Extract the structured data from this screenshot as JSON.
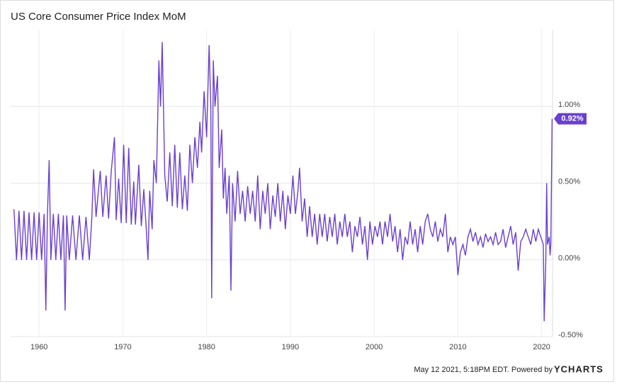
{
  "chart_data": {
    "type": "line",
    "title": "US Core Consumer Price Index MoM",
    "color": "#6a3fcf",
    "x": [
      1957.0,
      1957.3,
      1957.6,
      1957.9,
      1958.2,
      1958.5,
      1958.8,
      1959.1,
      1959.4,
      1959.7,
      1960.0,
      1960.3,
      1960.6,
      1960.8,
      1961.0,
      1961.2,
      1961.4,
      1961.7,
      1962.0,
      1962.3,
      1962.6,
      1962.9,
      1963.1,
      1963.3,
      1963.6,
      1964.0,
      1964.4,
      1964.8,
      1965.2,
      1965.6,
      1966.0,
      1966.3,
      1966.5,
      1966.8,
      1967.3,
      1967.6,
      1968.0,
      1968.3,
      1968.6,
      1969.0,
      1969.2,
      1969.5,
      1969.8,
      1970.1,
      1970.4,
      1970.7,
      1971.0,
      1971.3,
      1971.5,
      1971.9,
      1972.2,
      1972.5,
      1972.8,
      1973.0,
      1973.2,
      1973.5,
      1973.7,
      1974.0,
      1974.3,
      1974.5,
      1974.7,
      1975.0,
      1975.3,
      1975.6,
      1975.9,
      1976.2,
      1976.5,
      1976.8,
      1977.1,
      1977.4,
      1977.7,
      1978.0,
      1978.3,
      1978.6,
      1978.9,
      1979.2,
      1979.4,
      1979.7,
      1980.0,
      1980.3,
      1980.5,
      1980.6,
      1980.8,
      1981.0,
      1981.3,
      1981.5,
      1981.8,
      1982.0,
      1982.2,
      1982.4,
      1982.7,
      1982.9,
      1983.1,
      1983.4,
      1983.7,
      1984.0,
      1984.3,
      1984.6,
      1984.9,
      1985.2,
      1985.5,
      1985.8,
      1986.1,
      1986.4,
      1986.7,
      1987.0,
      1987.3,
      1987.6,
      1987.9,
      1988.2,
      1988.5,
      1988.8,
      1989.1,
      1989.4,
      1989.7,
      1990.0,
      1990.3,
      1990.6,
      1990.9,
      1991.1,
      1991.4,
      1991.7,
      1992.0,
      1992.3,
      1992.6,
      1992.9,
      1993.2,
      1993.5,
      1993.8,
      1994.1,
      1994.4,
      1994.7,
      1995.0,
      1995.3,
      1995.6,
      1995.9,
      1996.2,
      1996.5,
      1996.8,
      1997.1,
      1997.4,
      1997.7,
      1998.0,
      1998.3,
      1998.6,
      1998.9,
      1999.2,
      1999.5,
      1999.8,
      2000.1,
      2000.4,
      2000.7,
      2001.0,
      2001.3,
      2001.6,
      2001.9,
      2002.2,
      2002.5,
      2002.8,
      2003.1,
      2003.4,
      2003.7,
      2004.0,
      2004.3,
      2004.6,
      2004.9,
      2005.2,
      2005.5,
      2005.8,
      2006.1,
      2006.4,
      2006.7,
      2007.0,
      2007.3,
      2007.6,
      2007.9,
      2008.2,
      2008.5,
      2008.8,
      2009.1,
      2009.4,
      2009.7,
      2010.0,
      2010.3,
      2010.6,
      2010.9,
      2011.2,
      2011.5,
      2011.8,
      2012.1,
      2012.4,
      2012.7,
      2013.0,
      2013.3,
      2013.6,
      2013.9,
      2014.2,
      2014.5,
      2014.8,
      2015.1,
      2015.4,
      2015.7,
      2016.0,
      2016.3,
      2016.6,
      2016.9,
      2017.2,
      2017.5,
      2017.8,
      2018.1,
      2018.4,
      2018.7,
      2019.0,
      2019.3,
      2019.6,
      2019.9,
      2020.2,
      2020.3,
      2020.5,
      2020.6,
      2020.7,
      2020.9,
      2021.0,
      2021.1,
      2021.25
    ],
    "values": [
      0.33,
      0,
      0.32,
      0,
      0.32,
      0,
      0.31,
      0,
      0.31,
      0,
      0.31,
      0,
      0.3,
      -0.33,
      0.3,
      0.65,
      0,
      0.3,
      0,
      0.3,
      0,
      0.29,
      -0.33,
      0.29,
      0,
      0.29,
      0,
      0.29,
      0,
      0.28,
      0,
      0.28,
      0.59,
      0.28,
      0.58,
      0.28,
      0.55,
      0.27,
      0.57,
      0.8,
      0.26,
      0.53,
      0.24,
      0.75,
      0.24,
      0.73,
      0.23,
      0.51,
      0.23,
      0.62,
      0.22,
      0.46,
      0.2,
      0,
      0.45,
      0.2,
      0.65,
      0.5,
      1.3,
      1.0,
      1.42,
      0.55,
      0.38,
      0.7,
      0.35,
      0.75,
      0.34,
      0.7,
      0.33,
      0.55,
      0.32,
      0.75,
      0.5,
      0.8,
      0.6,
      0.9,
      0.7,
      1.1,
      0.8,
      1.4,
      1.0,
      -0.25,
      1.3,
      1.0,
      1.2,
      0.6,
      0.85,
      0.4,
      0.6,
      0.3,
      0.55,
      -0.2,
      0.5,
      0.25,
      0.58,
      0.3,
      0.45,
      0.25,
      0.48,
      0.3,
      0.45,
      0.25,
      0.55,
      0.2,
      0.45,
      0.3,
      0.5,
      0.2,
      0.42,
      0.28,
      0.5,
      0.25,
      0.45,
      0.2,
      0.42,
      0.3,
      0.55,
      0.3,
      0.45,
      0.6,
      0.25,
      0.4,
      0.15,
      0.35,
      0.15,
      0.3,
      0.1,
      0.3,
      0.15,
      0.3,
      0.12,
      0.28,
      0.15,
      0.3,
      0.1,
      0.25,
      0.15,
      0.3,
      0.15,
      0.25,
      0.05,
      0.22,
      0.15,
      0.28,
      0.1,
      0.22,
      0.0,
      0.25,
      0.1,
      0.22,
      0.15,
      0.25,
      0.1,
      0.25,
      0.15,
      0.3,
      0.12,
      0.22,
      0.05,
      0.2,
      0.0,
      0.15,
      0.1,
      0.25,
      0.1,
      0.2,
      0.05,
      0.22,
      0.1,
      0.25,
      0.3,
      0.2,
      0.15,
      0.25,
      0.12,
      0.2,
      0.15,
      0.3,
      0.05,
      0.15,
      0.1,
      0.15,
      -0.1,
      0.05,
      0.1,
      0.03,
      0.15,
      0.2,
      0.12,
      0.18,
      0.1,
      0.15,
      0.08,
      0.17,
      0.12,
      0.15,
      0.1,
      0.18,
      0.1,
      0.12,
      0.2,
      0.08,
      0.15,
      0.22,
      0.1,
      0.18,
      -0.07,
      0.12,
      0.15,
      0.2,
      0.15,
      0.1,
      0.2,
      0.12,
      0.2,
      0.15,
      0.1,
      -0.4,
      0.0,
      0.5,
      0.1,
      0.15,
      0.03,
      0.1,
      0.92
    ],
    "xlim": [
      1956.6,
      2021.3
    ],
    "xticks": [
      1960,
      1970,
      1980,
      1990,
      2000,
      2010,
      2020
    ],
    "ylim": [
      -0.5,
      1.5
    ],
    "yticks": [
      {
        "value": -0.5,
        "label": "-0.50%"
      },
      {
        "value": 0,
        "label": "0.00%"
      },
      {
        "value": 0.5,
        "label": "0.50%"
      },
      {
        "value": 1,
        "label": "1.00%"
      }
    ],
    "grid": true,
    "last_value": {
      "value": 0.92,
      "label": "0.92%"
    },
    "footer": "May 12 2021, 5:18PM EDT.  Powered by",
    "brand": "YCHARTS"
  }
}
